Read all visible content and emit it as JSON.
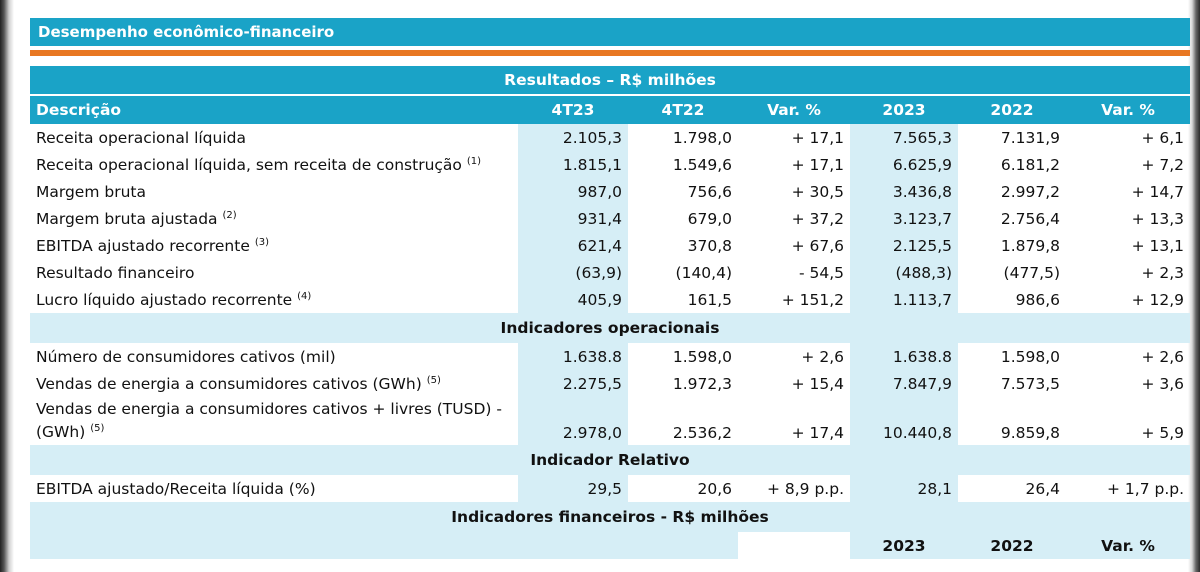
{
  "section_title": "Desempenho econômico-financeiro",
  "table_title": "Resultados – R$ milhões",
  "columns": [
    "Descrição",
    "4T23",
    "4T22",
    "Var. %",
    "2023",
    "2022",
    "Var. %"
  ],
  "results_rows": [
    {
      "label": "Receita operacional líquida",
      "note": "",
      "values": [
        "2.105,3",
        "1.798,0",
        "+ 17,1",
        "7.565,3",
        "7.131,9",
        "+ 6,1"
      ]
    },
    {
      "label": "Receita operacional líquida, sem receita de construção",
      "note": "(1)",
      "values": [
        "1.815,1",
        "1.549,6",
        "+ 17,1",
        "6.625,9",
        "6.181,2",
        "+ 7,2"
      ]
    },
    {
      "label": "Margem bruta",
      "note": "",
      "values": [
        "987,0",
        "756,6",
        "+ 30,5",
        "3.436,8",
        "2.997,2",
        "+ 14,7"
      ]
    },
    {
      "label": "Margem bruta ajustada",
      "note": "(2)",
      "values": [
        "931,4",
        "679,0",
        "+ 37,2",
        "3.123,7",
        "2.756,4",
        "+ 13,3"
      ]
    },
    {
      "label": "EBITDA ajustado recorrente",
      "note": "(3)",
      "values": [
        "621,4",
        "370,8",
        "+ 67,6",
        "2.125,5",
        "1.879,8",
        "+ 13,1"
      ]
    },
    {
      "label": "Resultado financeiro",
      "note": "",
      "values": [
        "(63,9)",
        "(140,4)",
        "- 54,5",
        "(488,3)",
        "(477,5)",
        "+ 2,3"
      ]
    },
    {
      "label": "Lucro líquido ajustado recorrente",
      "note": "(4)",
      "values": [
        "405,9",
        "161,5",
        "+ 151,2",
        "1.113,7",
        "986,6",
        "+ 12,9"
      ]
    }
  ],
  "operational_title": "Indicadores operacionais",
  "operational_rows": [
    {
      "label": "Número de consumidores cativos (mil)",
      "note": "",
      "values": [
        "1.638.8",
        "1.598,0",
        "+ 2,6",
        "1.638.8",
        "1.598,0",
        "+ 2,6"
      ]
    },
    {
      "label": "Vendas de energia a consumidores cativos (GWh)",
      "note": "(5)",
      "values": [
        "2.275,5",
        "1.972,3",
        "+ 15,4",
        "7.847,9",
        "7.573,5",
        "+ 3,6"
      ]
    }
  ],
  "operational_tall_row": {
    "label_line1": "Vendas de energia a consumidores cativos + livres (TUSD) -",
    "label_line2": "(GWh)",
    "note": "(5)",
    "values": [
      "2.978,0",
      "2.536,2",
      "+ 17,4",
      "10.440,8",
      "9.859,8",
      "+ 5,9"
    ]
  },
  "relative_title": "Indicador Relativo",
  "relative_row": {
    "label": "EBITDA ajustado/Receita líquida (%)",
    "values": [
      "29,5",
      "20,6",
      "+ 8,9 p.p.",
      "28,1",
      "26,4",
      "+ 1,7 p.p."
    ]
  },
  "financial_title": "Indicadores financeiros - R$ milhões",
  "financial_columns": [
    "2023",
    "2022",
    "Var. %"
  ],
  "colors": {
    "header_blue": "#1aa3c7",
    "light_blue": "#d6eef6",
    "orange": "#e87722"
  }
}
